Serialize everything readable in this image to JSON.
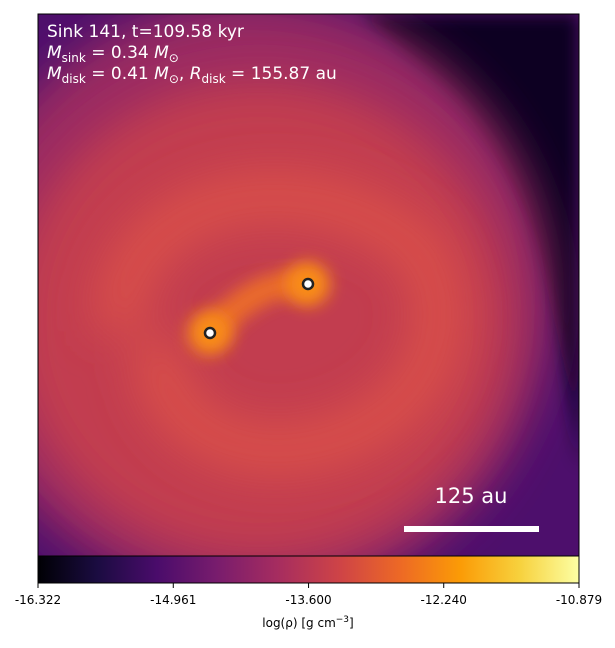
{
  "header": {
    "line1": "Sink 141, t=109.58 kyr",
    "line2": {
      "symbol": "M",
      "sub": "sink",
      "text": " = 0.34 ",
      "unit": "M",
      "unit_sub": "⊙"
    },
    "line3": {
      "symbol": "M",
      "sub": "disk",
      "text": " = 0.41 ",
      "unit": "M",
      "unit_sub": "⊙",
      "sep": ", ",
      "symbol2": "R",
      "sub2": "disk",
      "text2": " = 155.87 au"
    }
  },
  "scale_bar": {
    "label": "125 au"
  },
  "colorbar": {
    "lim": [
      -16.322,
      -10.879
    ],
    "ticks": [
      {
        "value": -16.322,
        "label": "-16.322"
      },
      {
        "value": -14.961,
        "label": "-14.961"
      },
      {
        "value": -13.6,
        "label": "-13.600"
      },
      {
        "value": -12.24,
        "label": "-12.240"
      },
      {
        "value": -10.879,
        "label": "-10.879"
      }
    ],
    "label": {
      "text": "log(ρ) [g cm",
      "sup": "−3",
      "end": "]"
    }
  }
}
